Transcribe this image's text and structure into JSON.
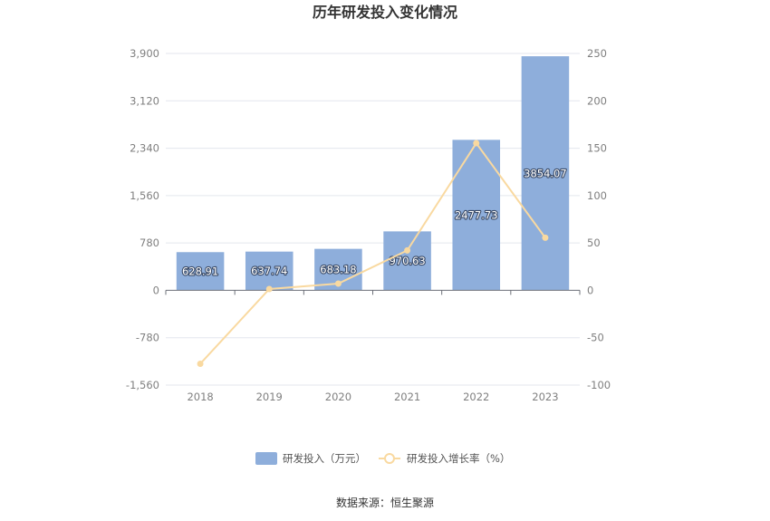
{
  "chart_data": {
    "type": "bar",
    "title": "历年研发投入变化情况",
    "categories": [
      "2018",
      "2019",
      "2020",
      "2021",
      "2022",
      "2023"
    ],
    "series": [
      {
        "name": "研发投入（万元）",
        "type": "bar",
        "axis": "left",
        "color": "#8eaedb",
        "values": [
          628.91,
          637.74,
          683.18,
          970.63,
          2477.73,
          3854.07
        ],
        "labels": [
          "628.91",
          "637.74",
          "683.18",
          "970.63",
          "2477.73",
          "3854.07"
        ]
      },
      {
        "name": "研发投入增长率（%）",
        "type": "line",
        "axis": "right",
        "color": "#f9d9a0",
        "values": [
          -77.5,
          1.4,
          7.1,
          42.1,
          155.3,
          55.5
        ]
      }
    ],
    "y_left": {
      "min": -1560,
      "max": 3900,
      "ticks": [
        3900,
        3120,
        2340,
        1560,
        780,
        0,
        -780,
        -1560
      ],
      "tick_labels": [
        "3,900",
        "3,120",
        "2,340",
        "1,560",
        "780",
        "0",
        "-780",
        "-1,560"
      ]
    },
    "y_right": {
      "min": -100,
      "max": 250,
      "ticks": [
        250,
        200,
        150,
        100,
        50,
        0,
        -50,
        -100
      ],
      "tick_labels": [
        "250",
        "200",
        "150",
        "100",
        "50",
        "0",
        "-50",
        "-100"
      ]
    },
    "grid": true,
    "legend": "bottom-center",
    "source": "数据来源：恒生聚源"
  }
}
